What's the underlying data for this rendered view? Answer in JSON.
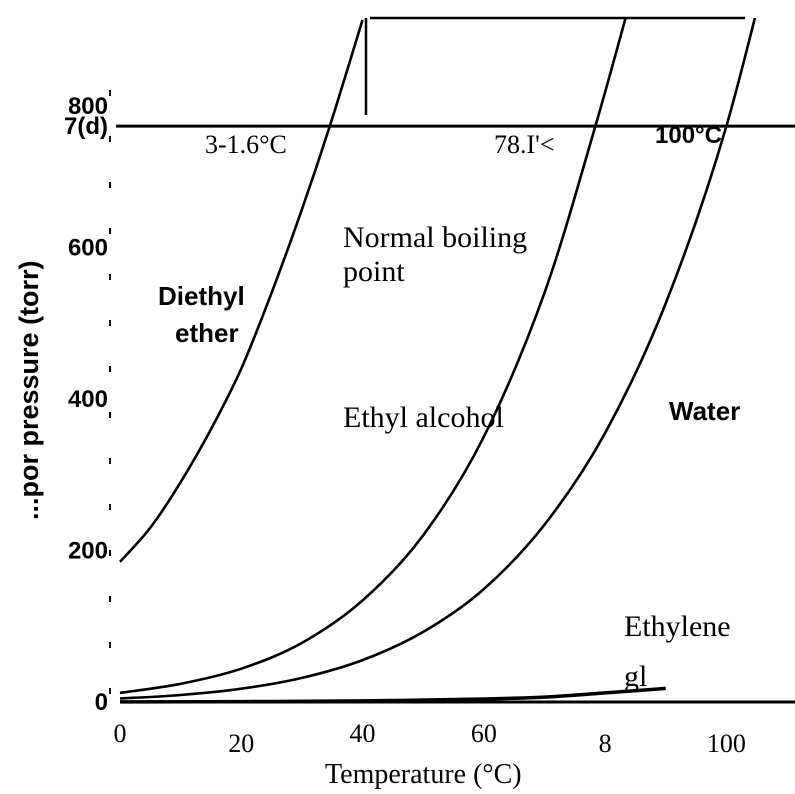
{
  "chart_data": {
    "type": "line",
    "xlabel": "Temperature (°C)",
    "ylabel": "...por pressure (torr)",
    "xlim": [
      0,
      110
    ],
    "ylim": [
      0,
      900
    ],
    "x_ticks": [
      "0",
      "20",
      "40",
      "60",
      "8",
      "100"
    ],
    "x_tick_values": [
      0,
      20,
      40,
      60,
      80,
      100
    ],
    "y_ticks": [
      "0",
      "200",
      "400",
      "600",
      "7(d)",
      "800"
    ],
    "y_tick_values": [
      0,
      200,
      400,
      600,
      760,
      800
    ],
    "grid": false,
    "reference_line": {
      "y": 760,
      "label": "Normal boiling point"
    },
    "series": [
      {
        "name": "Diethyl ether",
        "label_lines": [
          "Diethyl",
          "ether"
        ],
        "boiling_point_label": "3-1.6°C",
        "x": [
          0,
          5,
          10,
          15,
          20,
          25,
          30,
          34.6,
          40
        ],
        "y": [
          185,
          230,
          290,
          360,
          440,
          540,
          650,
          760,
          900
        ]
      },
      {
        "name": "Ethyl alcohol",
        "label_lines": [
          "Ethyl alcohol"
        ],
        "boiling_point_label": "78.I'<",
        "x": [
          0,
          10,
          20,
          30,
          40,
          50,
          60,
          70,
          78.4,
          85
        ],
        "y": [
          12,
          24,
          44,
          78,
          134,
          220,
          350,
          540,
          760,
          950
        ]
      },
      {
        "name": "Water",
        "label_lines": [
          "Water"
        ],
        "boiling_point_label": "100°C",
        "x": [
          0,
          10,
          20,
          30,
          40,
          50,
          60,
          70,
          80,
          90,
          100,
          110
        ],
        "y": [
          4.6,
          9.2,
          17.5,
          31.8,
          55.3,
          92.5,
          149,
          234,
          355,
          526,
          760,
          1075
        ]
      },
      {
        "name": "Ethylene glycol",
        "label_lines": [
          "Ethylene",
          "gl"
        ],
        "boiling_point_label": "",
        "x": [
          0,
          20,
          40,
          60,
          70,
          80,
          90
        ],
        "y": [
          0.1,
          0.5,
          1.5,
          4,
          6.5,
          12,
          18
        ]
      }
    ]
  }
}
